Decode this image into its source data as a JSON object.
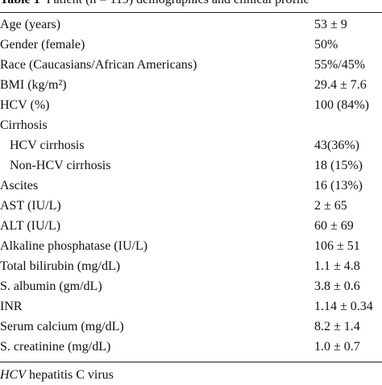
{
  "header": {
    "label": "Table 1",
    "title": "Patient (n = 119) demographics and clinical profile"
  },
  "table": {
    "rows": [
      [
        "Age (years)",
        "53 ± 9"
      ],
      [
        "Gender (female)",
        "50%"
      ],
      [
        "Race (Caucasians/African Americans)",
        "55%/45%"
      ],
      [
        "BMI (kg/m²)",
        "29.4 ± 7.6"
      ],
      [
        "HCV (%)",
        "100 (84%)"
      ],
      [
        "Cirrhosis",
        ""
      ],
      [
        "HCV cirrhosis",
        "43(36%)"
      ],
      [
        "Non-HCV cirrhosis",
        "18 (15%)"
      ],
      [
        "Ascites",
        "16 (13%)"
      ],
      [
        "AST (IU/L)",
        "2 ± 65"
      ],
      [
        "ALT (IU/L)",
        "60 ± 69"
      ],
      [
        "Alkaline phosphatase (IU/L)",
        "106 ± 51"
      ],
      [
        "Total bilirubin (mg/dL)",
        "1.1 ± 4.8"
      ],
      [
        "S. albumin (gm/dL)",
        "3.8 ± 0.6"
      ],
      [
        "INR",
        "1.14 ± 0.34"
      ],
      [
        "Serum calcium (mg/dL)",
        "8.2 ± 1.4"
      ],
      [
        "S. creatinine (mg/dL)",
        "1.0 ± 0.7"
      ]
    ]
  },
  "footnote": {
    "abbr": "HCV",
    "text": "hepatitis C virus"
  }
}
